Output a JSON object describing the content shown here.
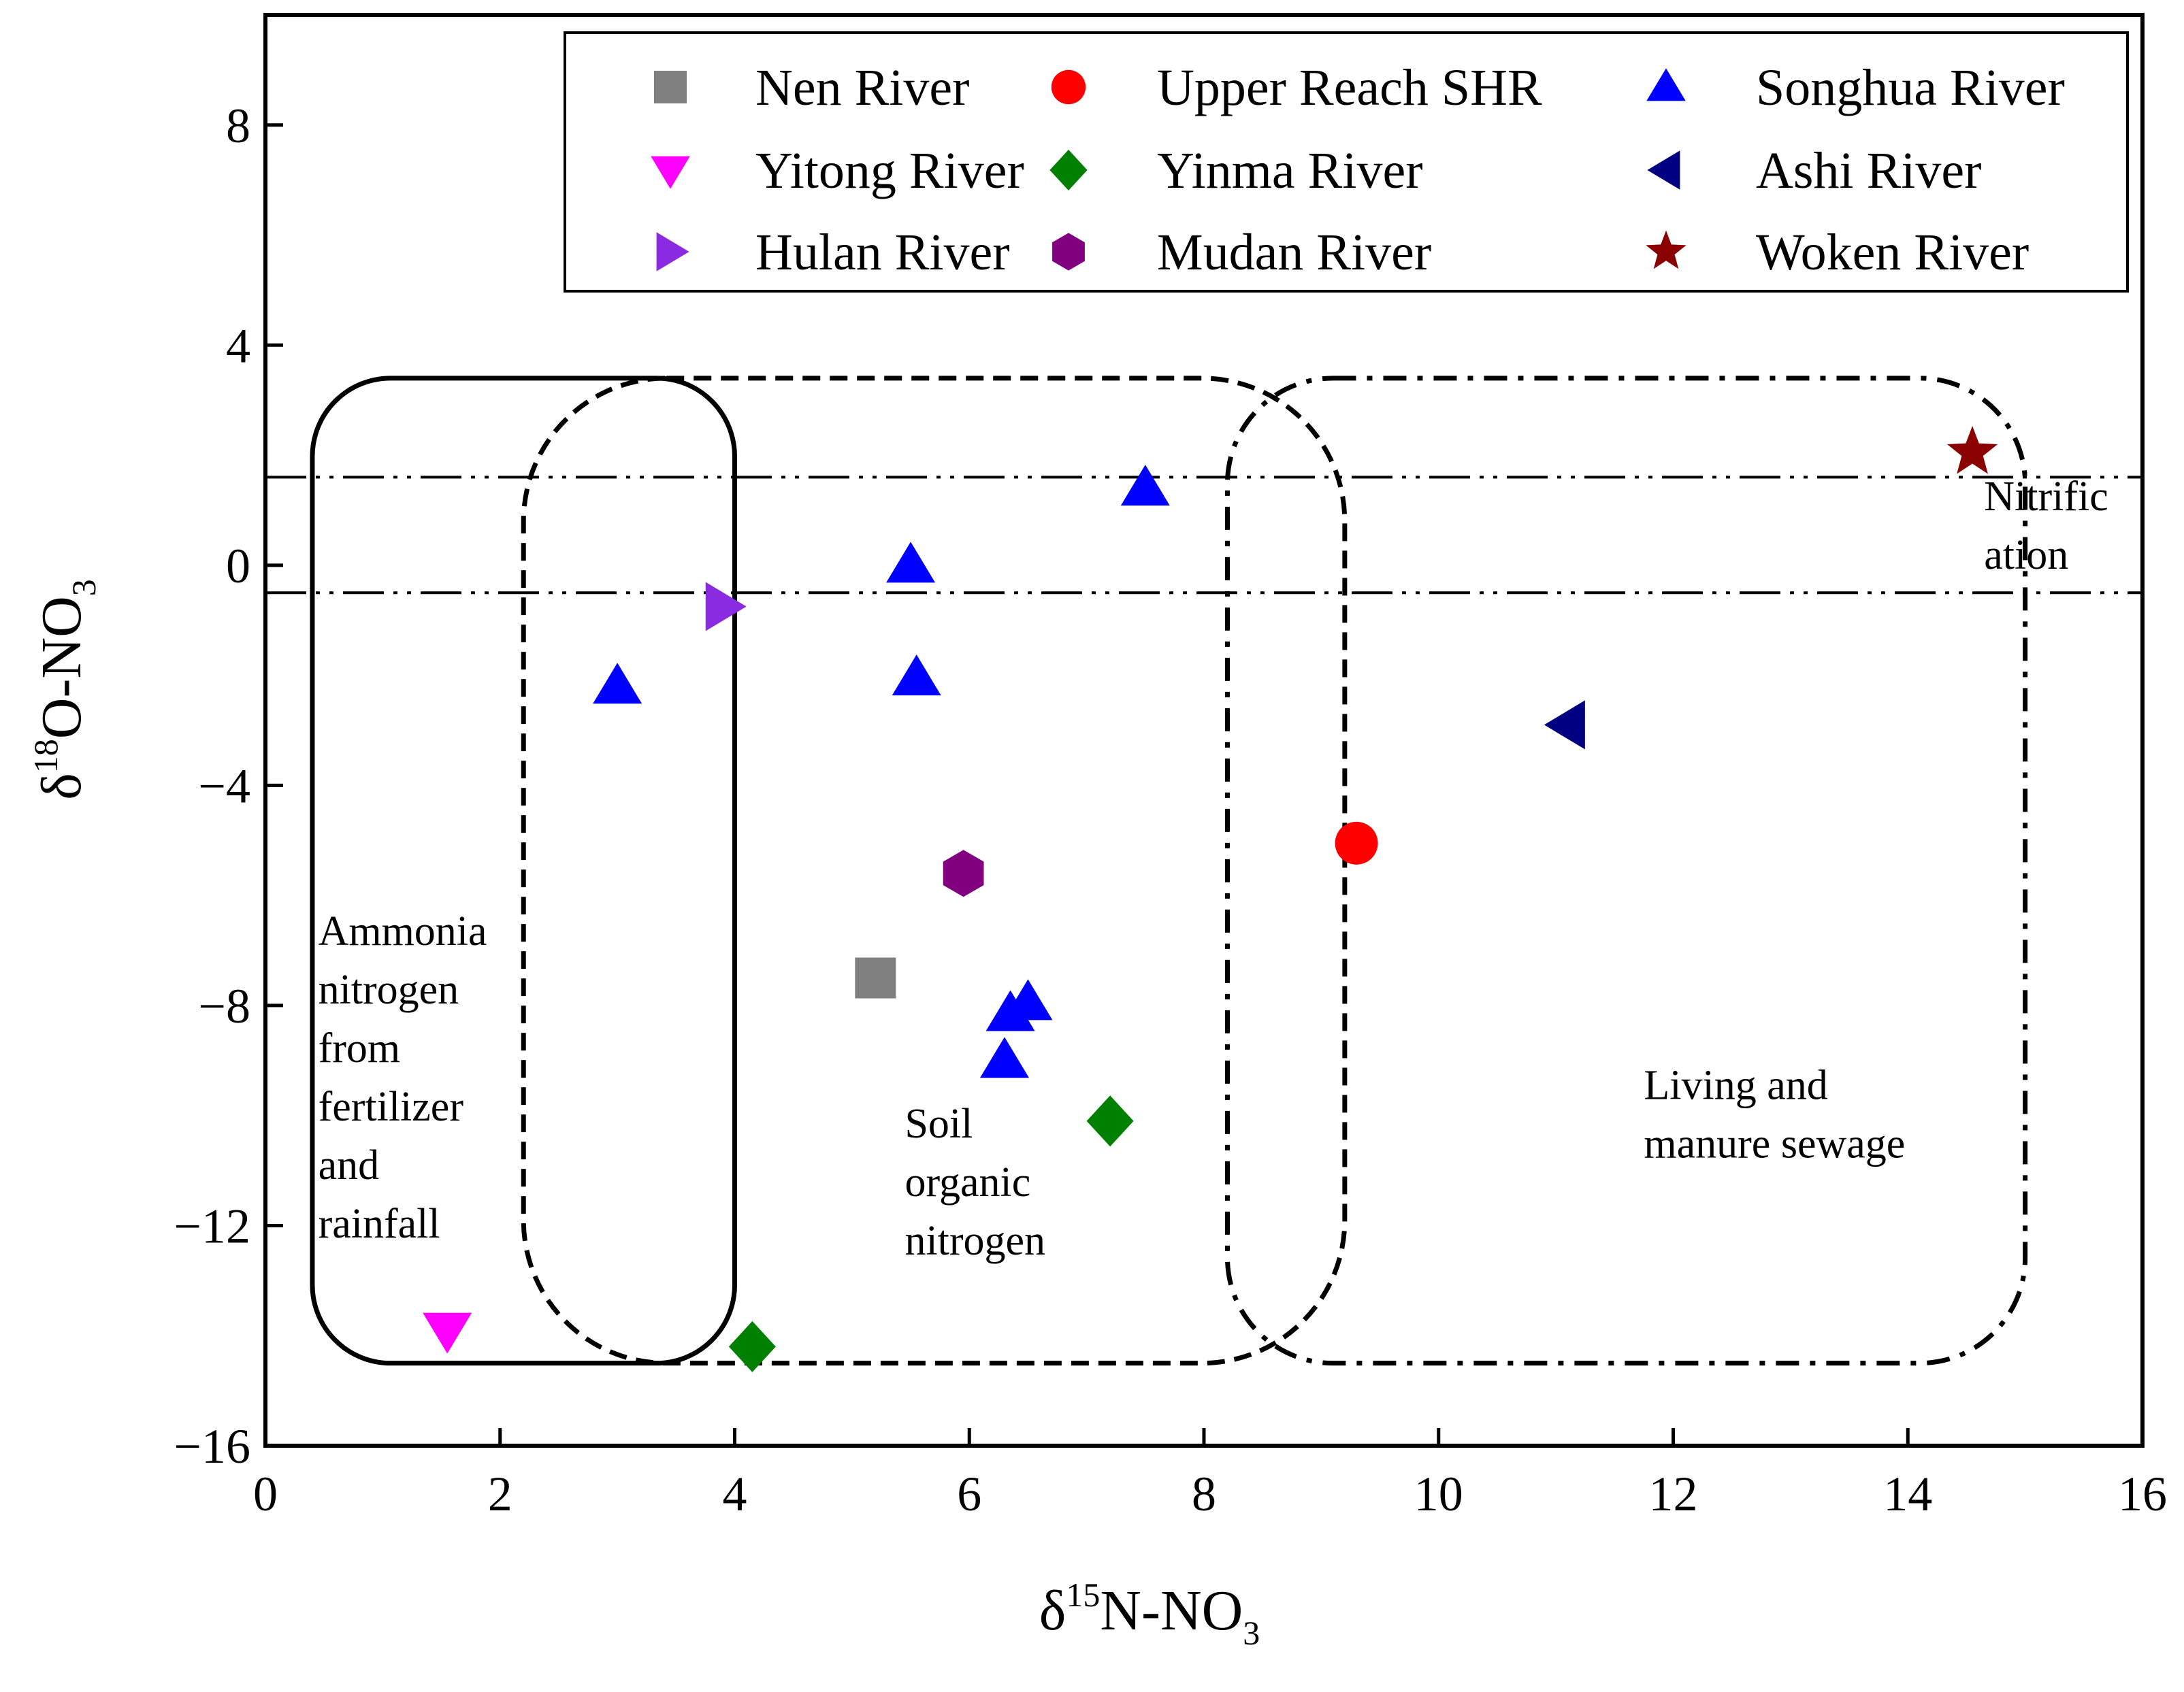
{
  "chart_data": {
    "type": "scatter",
    "title": "",
    "xlabel": {
      "prefix": "δ",
      "sup": "15",
      "main": "N-NO",
      "sub": "3"
    },
    "ylabel": {
      "prefix": "δ",
      "sup": "18",
      "main": "O-NO",
      "sub": "3"
    },
    "xlim": [
      0,
      16
    ],
    "ylim": [
      -16,
      10
    ],
    "x_ticks": [
      0,
      2,
      4,
      6,
      8,
      10,
      12,
      14,
      16
    ],
    "y_ticks": [
      -16,
      -12,
      -8,
      -4,
      0,
      4,
      8
    ],
    "x_tick_labels": [
      "0",
      "2",
      "4",
      "6",
      "8",
      "10",
      "12",
      "14",
      "16"
    ],
    "y_tick_labels": [
      "−16",
      "−12",
      "−8",
      "−4",
      "0",
      "4",
      "8"
    ],
    "grid": false,
    "legend_position": "top-right",
    "series": [
      {
        "name": "Nen River",
        "marker": "square",
        "color": "#808080",
        "points": [
          [
            5.2,
            -7.5
          ]
        ]
      },
      {
        "name": "Upper Reach SHR",
        "marker": "circle",
        "color": "#ff0000",
        "points": [
          [
            9.3,
            -5.05
          ]
        ]
      },
      {
        "name": "Songhua River",
        "marker": "triangle-up",
        "color": "#0000ff",
        "points": [
          [
            3.0,
            -2.2
          ],
          [
            5.5,
            0.0
          ],
          [
            5.55,
            -2.05
          ],
          [
            7.5,
            1.4
          ],
          [
            6.35,
            -8.15
          ],
          [
            6.5,
            -7.95
          ],
          [
            6.3,
            -9.0
          ]
        ]
      },
      {
        "name": "Yitong River",
        "marker": "triangle-down",
        "color": "#ff00ff",
        "points": [
          [
            1.55,
            -13.9
          ]
        ]
      },
      {
        "name": "Yinma River",
        "marker": "diamond",
        "color": "#008000",
        "points": [
          [
            4.15,
            -14.2
          ],
          [
            7.2,
            -10.1
          ]
        ]
      },
      {
        "name": "Ashi River",
        "marker": "triangle-left",
        "color": "#000080",
        "points": [
          [
            11.1,
            -2.9
          ]
        ]
      },
      {
        "name": "Hulan River",
        "marker": "triangle-right",
        "color": "#8a2be2",
        "points": [
          [
            3.9,
            -0.75
          ]
        ]
      },
      {
        "name": "Mudan River",
        "marker": "hexagon",
        "color": "#800080",
        "points": [
          [
            5.95,
            -5.6
          ]
        ]
      },
      {
        "name": "Woken River",
        "marker": "star",
        "color": "#8b0000",
        "points": [
          [
            14.55,
            2.05
          ]
        ]
      }
    ],
    "regions": [
      {
        "name": "Ammonia nitrogen from fertilizer and rainfall",
        "style": "solid",
        "x_range": [
          0.4,
          4.0
        ],
        "y_range": [
          -14.5,
          3.4
        ]
      },
      {
        "name": "Soil organic nitrogen",
        "style": "dashed",
        "x_range": [
          2.2,
          9.2
        ],
        "y_range": [
          -14.5,
          3.4
        ]
      },
      {
        "name": "Living and manure sewage",
        "style": "dash-dot",
        "x_range": [
          8.2,
          15.0
        ],
        "y_range": [
          -14.5,
          3.4
        ]
      }
    ],
    "reference_lines": [
      {
        "name": "nitrification-upper",
        "y": 1.6,
        "style": "dash-dot-dot"
      },
      {
        "name": "nitrification-lower",
        "y": -0.5,
        "style": "dash-dot-dot"
      }
    ],
    "annotations": [
      {
        "name": "ammonia-label",
        "lines": [
          "Ammonia",
          "nitrogen",
          "from",
          "fertilizer",
          "and",
          "rainfall"
        ],
        "x": 0.45,
        "y": -6.9
      },
      {
        "name": "soil-label",
        "lines": [
          "Soil",
          "organic",
          "nitrogen"
        ],
        "x": 5.45,
        "y": -10.4
      },
      {
        "name": "sewage-label",
        "lines": [
          "Living and",
          "manure sewage"
        ],
        "x": 11.75,
        "y": -9.7
      },
      {
        "name": "nitrification-label",
        "lines": [
          "Nitrific",
          "ation"
        ],
        "x": 14.65,
        "y": 1.0
      }
    ]
  }
}
